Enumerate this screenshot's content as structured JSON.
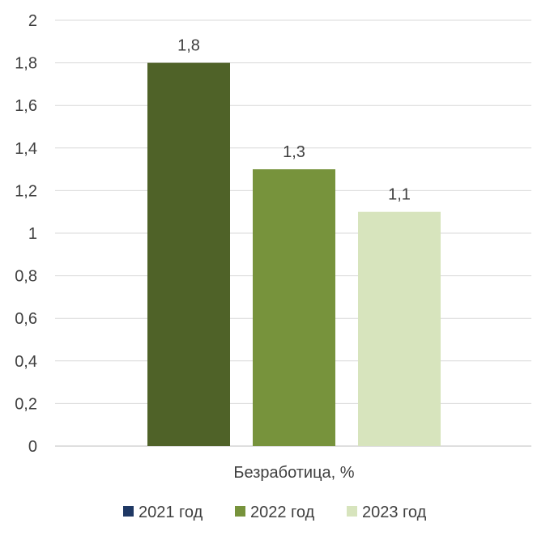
{
  "chart_data": {
    "type": "bar",
    "categories": [
      "Безработица, %"
    ],
    "series": [
      {
        "name": "2021 год",
        "values": [
          1.8
        ],
        "color": "#4f6228",
        "legend_color": "#1f3864",
        "label": "1,8"
      },
      {
        "name": "2022 год",
        "values": [
          1.3
        ],
        "color": "#77933c",
        "legend_color": "#77933c",
        "label": "1,3"
      },
      {
        "name": "2023 год",
        "values": [
          1.1
        ],
        "color": "#d7e4bd",
        "legend_color": "#d7e4bd",
        "label": "1,1"
      }
    ],
    "ylim": [
      0,
      2
    ],
    "yticks": [
      {
        "value": 0,
        "label": "0"
      },
      {
        "value": 0.2,
        "label": "0,2"
      },
      {
        "value": 0.4,
        "label": "0,4"
      },
      {
        "value": 0.6,
        "label": "0,6"
      },
      {
        "value": 0.8,
        "label": "0,8"
      },
      {
        "value": 1,
        "label": "1"
      },
      {
        "value": 1.2,
        "label": "1,2"
      },
      {
        "value": 1.4,
        "label": "1,4"
      },
      {
        "value": 1.6,
        "label": "1,6"
      },
      {
        "value": 1.8,
        "label": "1,8"
      },
      {
        "value": 2,
        "label": "2"
      }
    ],
    "grid": true,
    "legend_position": "bottom"
  }
}
